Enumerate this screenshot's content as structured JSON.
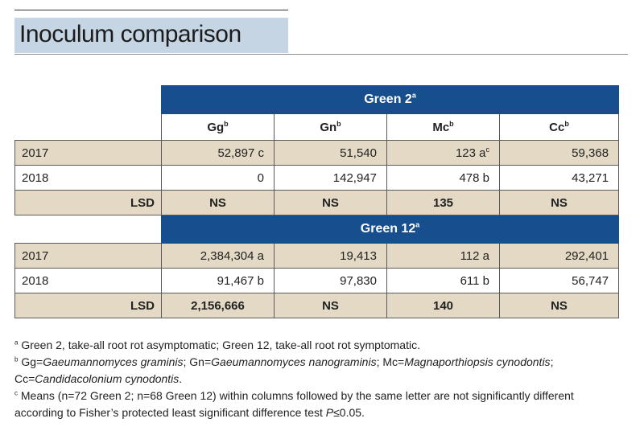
{
  "title": "Inoculum comparison",
  "columns": [
    {
      "label": "Gg",
      "sup": "b"
    },
    {
      "label": "Gn",
      "sup": "b"
    },
    {
      "label": "Mc",
      "sup": "b"
    },
    {
      "label": "Cc",
      "sup": "b"
    }
  ],
  "groups": [
    {
      "name": "Green 2",
      "sup": "a",
      "rows": [
        {
          "year": "2017",
          "gg": "52,897 c",
          "gn": "51,540",
          "mc": "123 a",
          "mc_sup": "c",
          "cc": "59,368"
        },
        {
          "year": "2018",
          "gg": "0",
          "gn": "142,947",
          "mc": "478 b",
          "mc_sup": "",
          "cc": "43,271"
        }
      ],
      "lsd": {
        "label": "LSD",
        "gg": "NS",
        "gn": "NS",
        "mc": "135",
        "cc": "NS"
      }
    },
    {
      "name": "Green 12",
      "sup": "a",
      "rows": [
        {
          "year": "2017",
          "gg": "2,384,304 a",
          "gn": "19,413",
          "mc": "112 a",
          "mc_sup": "",
          "cc": "292,401"
        },
        {
          "year": "2018",
          "gg": "91,467 b",
          "gn": "97,830",
          "mc": "611 b",
          "mc_sup": "",
          "cc": "56,747"
        }
      ],
      "lsd": {
        "label": "LSD",
        "gg": "2,156,666",
        "gn": "NS",
        "mc": "140",
        "cc": "NS"
      }
    }
  ],
  "footnotes": {
    "a": {
      "marker": "a",
      "text": "Green 2, take-all root rot asymptomatic; Green 12, take-all root rot symptomatic."
    },
    "b": {
      "marker": "b",
      "gg_prefix": "Gg=",
      "gg_name": "Gaeumannomyces graminis",
      "gn_prefix": "; Gn=",
      "gn_name": "Gaeumannomyces nanograminis",
      "mc_prefix": "; Mc=",
      "mc_name": "Magnaporthiopsis cynodontis",
      "mc_suffix": ";",
      "cc_prefix": "Cc=",
      "cc_name": "Candidacolonium cynodontis",
      "cc_suffix": "."
    },
    "c": {
      "marker": "c",
      "line1": "Means (n=72 Green 2; n=68 Green 12) within columns followed by the same letter are not significantly different",
      "line2_text": "according to Fisher’s protected least significant difference test ",
      "line2_p": "P",
      "line2_end": "≤0.05."
    }
  }
}
